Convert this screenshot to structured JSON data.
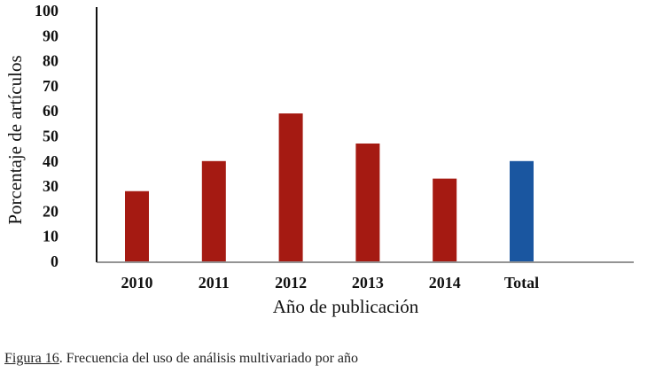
{
  "chart_data": {
    "type": "bar",
    "title": "",
    "xlabel": "Año de publicación",
    "ylabel": "Porcentaje de artículos",
    "ylim": [
      0,
      100
    ],
    "yticks": [
      0,
      10,
      20,
      30,
      40,
      50,
      60,
      70,
      80,
      90,
      100
    ],
    "categories": [
      "2010",
      "2011",
      "2012",
      "2013",
      "2014",
      "Total"
    ],
    "values": [
      28,
      40,
      59,
      47,
      33,
      40
    ],
    "colors": [
      "#a51a12",
      "#a51a12",
      "#a51a12",
      "#a51a12",
      "#a51a12",
      "#1a56a0"
    ],
    "grid": false
  },
  "caption": {
    "label": "Figura 16",
    "text": ". Frecuencia del uso de análisis multivariado por año"
  }
}
